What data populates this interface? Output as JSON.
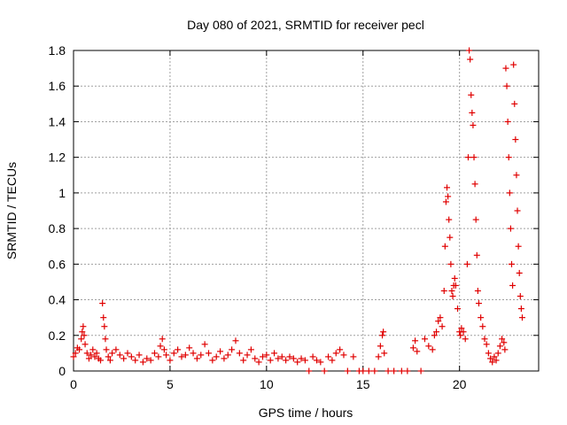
{
  "chart_data": {
    "type": "scatter",
    "title": "Day 080 of 2021, SRMTID for receiver pecl",
    "xlabel": "GPS time / hours",
    "ylabel": "SRMTID / TECUs",
    "xlim": [
      0,
      24.1
    ],
    "ylim": [
      0,
      1.8
    ],
    "grid": true,
    "xticks": [
      0,
      5,
      10,
      15,
      20
    ],
    "xtick_labels": [
      "0",
      "5",
      "10",
      "15",
      "20"
    ],
    "yticks": [
      0,
      0.2,
      0.4,
      0.6,
      0.8,
      1.0,
      1.2,
      1.4,
      1.6,
      1.8
    ],
    "ytick_labels": [
      "0",
      "0.2",
      "0.4",
      "0.6",
      "0.8",
      "1",
      "1.2",
      "1.4",
      "1.6",
      "1.8"
    ],
    "marker": "+",
    "color": "#e00000",
    "series": [
      {
        "name": "SRMTID",
        "points": [
          [
            0.0,
            0.08
          ],
          [
            0.1,
            0.1
          ],
          [
            0.2,
            0.13
          ],
          [
            0.3,
            0.12
          ],
          [
            0.4,
            0.18
          ],
          [
            0.45,
            0.22
          ],
          [
            0.5,
            0.25
          ],
          [
            0.55,
            0.2
          ],
          [
            0.6,
            0.15
          ],
          [
            0.7,
            0.1
          ],
          [
            0.8,
            0.07
          ],
          [
            0.9,
            0.09
          ],
          [
            1.0,
            0.12
          ],
          [
            1.1,
            0.08
          ],
          [
            1.2,
            0.1
          ],
          [
            1.3,
            0.07
          ],
          [
            1.4,
            0.06
          ],
          [
            1.5,
            0.38
          ],
          [
            1.55,
            0.3
          ],
          [
            1.6,
            0.25
          ],
          [
            1.65,
            0.18
          ],
          [
            1.7,
            0.12
          ],
          [
            1.8,
            0.08
          ],
          [
            1.9,
            0.06
          ],
          [
            2.0,
            0.1
          ],
          [
            2.2,
            0.12
          ],
          [
            2.4,
            0.09
          ],
          [
            2.6,
            0.07
          ],
          [
            2.8,
            0.1
          ],
          [
            3.0,
            0.08
          ],
          [
            3.2,
            0.06
          ],
          [
            3.4,
            0.09
          ],
          [
            3.6,
            0.05
          ],
          [
            3.8,
            0.07
          ],
          [
            4.0,
            0.06
          ],
          [
            4.2,
            0.1
          ],
          [
            4.4,
            0.08
          ],
          [
            4.5,
            0.14
          ],
          [
            4.6,
            0.18
          ],
          [
            4.7,
            0.12
          ],
          [
            4.8,
            0.09
          ],
          [
            5.0,
            0.06
          ],
          [
            5.2,
            0.1
          ],
          [
            5.4,
            0.12
          ],
          [
            5.6,
            0.08
          ],
          [
            5.8,
            0.09
          ],
          [
            6.0,
            0.13
          ],
          [
            6.2,
            0.1
          ],
          [
            6.4,
            0.07
          ],
          [
            6.6,
            0.09
          ],
          [
            6.8,
            0.15
          ],
          [
            7.0,
            0.1
          ],
          [
            7.2,
            0.06
          ],
          [
            7.4,
            0.08
          ],
          [
            7.6,
            0.11
          ],
          [
            7.8,
            0.07
          ],
          [
            8.0,
            0.09
          ],
          [
            8.2,
            0.12
          ],
          [
            8.4,
            0.17
          ],
          [
            8.6,
            0.1
          ],
          [
            8.8,
            0.06
          ],
          [
            9.0,
            0.09
          ],
          [
            9.2,
            0.12
          ],
          [
            9.4,
            0.07
          ],
          [
            9.6,
            0.05
          ],
          [
            9.8,
            0.08
          ],
          [
            10.0,
            0.09
          ],
          [
            10.2,
            0.06
          ],
          [
            10.4,
            0.1
          ],
          [
            10.6,
            0.07
          ],
          [
            10.8,
            0.08
          ],
          [
            11.0,
            0.06
          ],
          [
            11.2,
            0.08
          ],
          [
            11.4,
            0.07
          ],
          [
            11.6,
            0.05
          ],
          [
            11.8,
            0.07
          ],
          [
            12.0,
            0.06
          ],
          [
            12.2,
            0.0
          ],
          [
            12.4,
            0.08
          ],
          [
            12.6,
            0.06
          ],
          [
            12.8,
            0.05
          ],
          [
            13.0,
            0.0
          ],
          [
            13.2,
            0.08
          ],
          [
            13.4,
            0.06
          ],
          [
            13.6,
            0.1
          ],
          [
            13.8,
            0.12
          ],
          [
            14.0,
            0.09
          ],
          [
            14.2,
            0.0
          ],
          [
            14.5,
            0.08
          ],
          [
            14.8,
            0.0
          ],
          [
            15.0,
            0.0
          ],
          [
            15.3,
            0.0
          ],
          [
            15.6,
            0.0
          ],
          [
            15.8,
            0.08
          ],
          [
            15.9,
            0.14
          ],
          [
            16.0,
            0.2
          ],
          [
            16.05,
            0.22
          ],
          [
            16.1,
            0.1
          ],
          [
            16.3,
            0.0
          ],
          [
            16.6,
            0.0
          ],
          [
            17.0,
            0.0
          ],
          [
            17.3,
            0.0
          ],
          [
            17.6,
            0.13
          ],
          [
            17.7,
            0.17
          ],
          [
            17.8,
            0.11
          ],
          [
            18.0,
            0.0
          ],
          [
            18.2,
            0.18
          ],
          [
            18.4,
            0.14
          ],
          [
            18.6,
            0.12
          ],
          [
            18.7,
            0.2
          ],
          [
            18.8,
            0.22
          ],
          [
            18.9,
            0.28
          ],
          [
            19.0,
            0.3
          ],
          [
            19.1,
            0.25
          ],
          [
            19.2,
            0.45
          ],
          [
            19.25,
            0.7
          ],
          [
            19.3,
            0.95
          ],
          [
            19.35,
            1.03
          ],
          [
            19.4,
            0.98
          ],
          [
            19.45,
            0.85
          ],
          [
            19.5,
            0.75
          ],
          [
            19.55,
            0.6
          ],
          [
            19.6,
            0.45
          ],
          [
            19.65,
            0.42
          ],
          [
            19.7,
            0.48
          ],
          [
            19.75,
            0.52
          ],
          [
            19.8,
            0.48
          ],
          [
            19.9,
            0.35
          ],
          [
            20.0,
            0.22
          ],
          [
            20.05,
            0.2
          ],
          [
            20.1,
            0.24
          ],
          [
            20.2,
            0.22
          ],
          [
            20.3,
            0.18
          ],
          [
            20.4,
            0.6
          ],
          [
            20.45,
            1.2
          ],
          [
            20.5,
            1.8
          ],
          [
            20.55,
            1.75
          ],
          [
            20.6,
            1.55
          ],
          [
            20.65,
            1.45
          ],
          [
            20.7,
            1.38
          ],
          [
            20.75,
            1.2
          ],
          [
            20.8,
            1.05
          ],
          [
            20.85,
            0.85
          ],
          [
            20.9,
            0.65
          ],
          [
            20.95,
            0.45
          ],
          [
            21.0,
            0.38
          ],
          [
            21.1,
            0.3
          ],
          [
            21.2,
            0.25
          ],
          [
            21.3,
            0.18
          ],
          [
            21.4,
            0.15
          ],
          [
            21.5,
            0.1
          ],
          [
            21.6,
            0.07
          ],
          [
            21.7,
            0.05
          ],
          [
            21.8,
            0.08
          ],
          [
            21.9,
            0.06
          ],
          [
            22.0,
            0.1
          ],
          [
            22.1,
            0.14
          ],
          [
            22.2,
            0.18
          ],
          [
            22.3,
            0.16
          ],
          [
            22.35,
            0.12
          ],
          [
            22.4,
            1.7
          ],
          [
            22.45,
            1.6
          ],
          [
            22.5,
            1.4
          ],
          [
            22.55,
            1.2
          ],
          [
            22.6,
            1.0
          ],
          [
            22.65,
            0.8
          ],
          [
            22.7,
            0.6
          ],
          [
            22.75,
            0.48
          ],
          [
            22.8,
            1.72
          ],
          [
            22.85,
            1.5
          ],
          [
            22.9,
            1.3
          ],
          [
            22.95,
            1.1
          ],
          [
            23.0,
            0.9
          ],
          [
            23.05,
            0.7
          ],
          [
            23.1,
            0.55
          ],
          [
            23.15,
            0.42
          ],
          [
            23.2,
            0.35
          ],
          [
            23.25,
            0.3
          ]
        ]
      }
    ]
  }
}
